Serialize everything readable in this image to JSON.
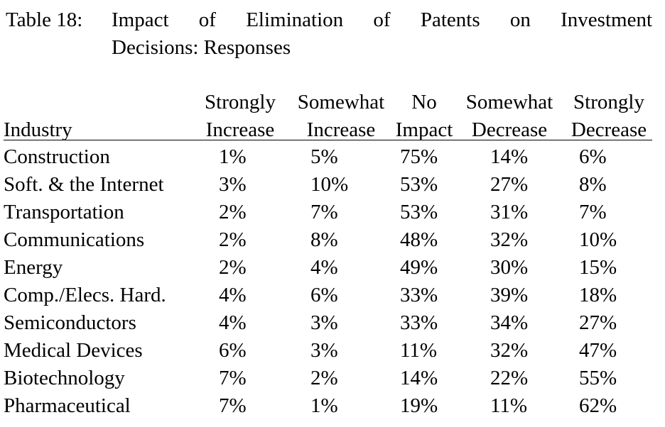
{
  "caption": {
    "label": "Table 18:",
    "title": [
      "Impact of Elimination of Patents on Investment",
      "Decisions: Responses"
    ]
  },
  "table": {
    "header": [
      [
        "Industry"
      ],
      [
        "Strongly",
        "Increase"
      ],
      [
        "Somewhat",
        "Increase"
      ],
      [
        "No",
        "Impact"
      ],
      [
        "Somewhat",
        "Decrease"
      ],
      [
        "Strongly",
        "Decrease"
      ]
    ],
    "rows": [
      [
        "Construction",
        "1%",
        "5%",
        "75%",
        "14%",
        "6%"
      ],
      [
        "Soft. & the Internet",
        "3%",
        "10%",
        "53%",
        "27%",
        "8%"
      ],
      [
        "Transportation",
        "2%",
        "7%",
        "53%",
        "31%",
        "7%"
      ],
      [
        "Communications",
        "2%",
        "8%",
        "48%",
        "32%",
        "10%"
      ],
      [
        "Energy",
        "2%",
        "4%",
        "49%",
        "30%",
        "15%"
      ],
      [
        "Comp./Elecs. Hard.",
        "4%",
        "6%",
        "33%",
        "39%",
        "18%"
      ],
      [
        "Semiconductors",
        "4%",
        "3%",
        "33%",
        "34%",
        "27%"
      ],
      [
        "Medical Devices",
        "6%",
        "3%",
        "11%",
        "32%",
        "47%"
      ],
      [
        "Biotechnology",
        "7%",
        "2%",
        "14%",
        "22%",
        "55%"
      ],
      [
        "Pharmaceutical",
        "7%",
        "1%",
        "19%",
        "11%",
        "62%"
      ]
    ]
  }
}
